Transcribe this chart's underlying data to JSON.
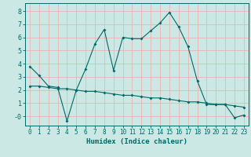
{
  "xlabel": "Humidex (Indice chaleur)",
  "bg_color": "#cce8e4",
  "grid_color": "#e8b4b4",
  "line_color": "#006868",
  "spine_color": "#006868",
  "xlim": [
    -0.5,
    23.5
  ],
  "ylim": [
    -0.7,
    8.6
  ],
  "xticks": [
    0,
    1,
    2,
    3,
    4,
    5,
    6,
    7,
    8,
    9,
    10,
    11,
    12,
    13,
    14,
    15,
    16,
    17,
    18,
    19,
    20,
    21,
    22,
    23
  ],
  "yticks": [
    0,
    1,
    2,
    3,
    4,
    5,
    6,
    7,
    8
  ],
  "ytick_labels": [
    "-0",
    "1",
    "2",
    "3",
    "4",
    "5",
    "6",
    "7",
    "8"
  ],
  "series1_x": [
    0,
    1,
    2,
    3,
    4,
    5,
    6,
    7,
    8,
    9,
    10,
    11,
    12,
    13,
    14,
    15,
    16,
    17,
    18,
    19,
    20,
    21,
    22,
    23
  ],
  "series1_y": [
    3.8,
    3.1,
    2.3,
    2.2,
    -0.35,
    2.0,
    3.6,
    5.5,
    6.6,
    3.5,
    6.0,
    5.9,
    5.9,
    6.5,
    7.1,
    7.9,
    6.8,
    5.3,
    2.7,
    0.9,
    0.9,
    0.9,
    -0.1,
    0.1
  ],
  "series2_x": [
    0,
    1,
    2,
    3,
    4,
    5,
    6,
    7,
    8,
    9,
    10,
    11,
    12,
    13,
    14,
    15,
    16,
    17,
    18,
    19,
    20,
    21,
    22,
    23
  ],
  "series2_y": [
    2.3,
    2.3,
    2.2,
    2.1,
    2.1,
    2.0,
    1.9,
    1.9,
    1.8,
    1.7,
    1.6,
    1.6,
    1.5,
    1.4,
    1.4,
    1.3,
    1.2,
    1.1,
    1.1,
    1.0,
    0.9,
    0.9,
    0.8,
    0.7
  ],
  "xlabel_fontsize": 6.5,
  "tick_fontsize": 5.5
}
